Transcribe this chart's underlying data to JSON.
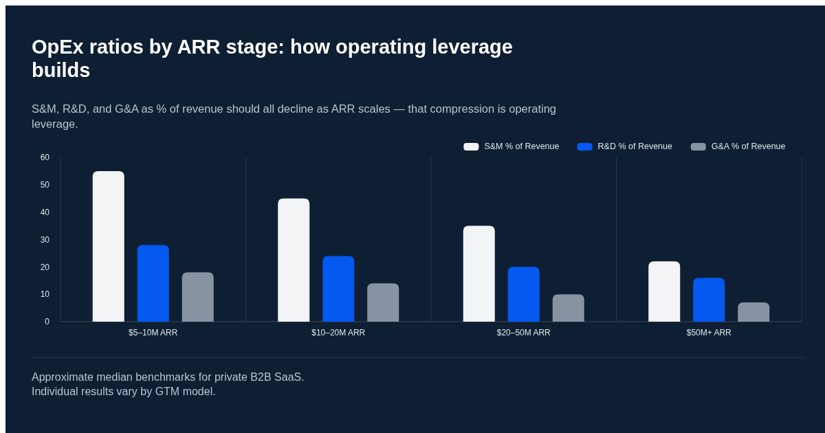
{
  "chart_data": {
    "type": "bar",
    "title": "OpEx ratios by ARR stage: how operating leverage builds",
    "subtitle": "S&M, R&D, and G&A as % of revenue should all decline as ARR scales — that compression is operating leverage.",
    "categories": [
      "$5–10M ARR",
      "$10–20M ARR",
      "$20–50M ARR",
      "$50M+ ARR"
    ],
    "series": [
      {
        "name": "S&M % of Revenue",
        "color": "#f3f4f6",
        "values": [
          55,
          45,
          35,
          22
        ]
      },
      {
        "name": "R&D % of Revenue",
        "color": "#0558f0",
        "values": [
          28,
          24,
          20,
          16
        ]
      },
      {
        "name": "G&A % of Revenue",
        "color": "#8793a3",
        "values": [
          18,
          14,
          10,
          7
        ]
      }
    ],
    "ylim": [
      0,
      60
    ],
    "yticks": [
      0,
      10,
      20,
      30,
      40,
      50,
      60
    ],
    "grid": "x",
    "legend": "top right",
    "annotations": [
      "Approximate median benchmarks for private B2B SaaS. Individual results vary by GTM model."
    ]
  }
}
